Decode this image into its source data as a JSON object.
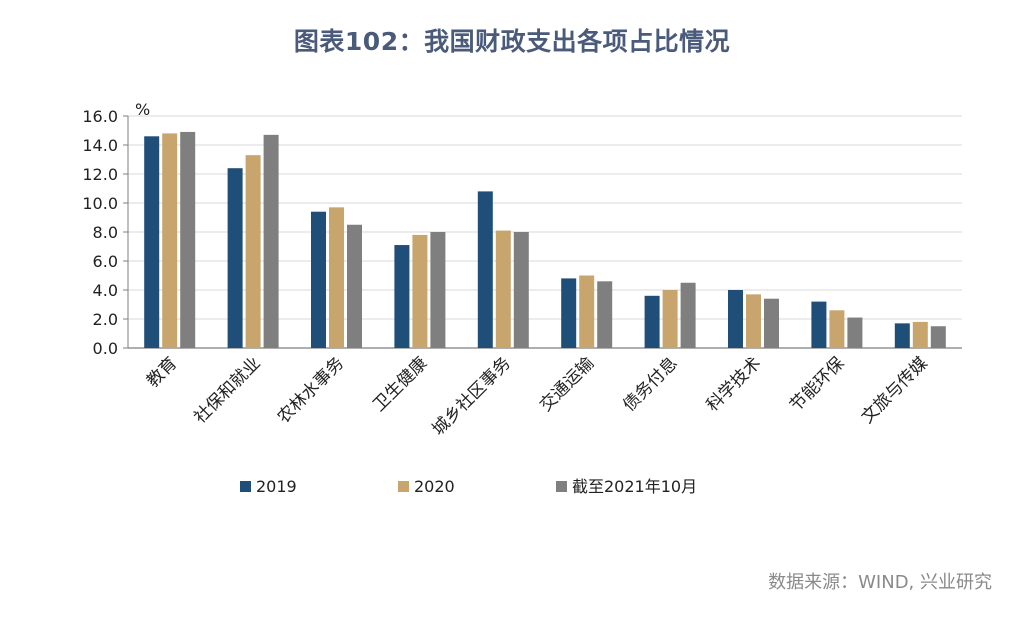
{
  "title": "图表102：我国财政支出各项占比情况",
  "source": "数据来源：WIND, 兴业研究",
  "colors": {
    "s2019": "#1f4e79",
    "s2020": "#c9a56e",
    "s2021": "#7f7f7f",
    "grid": "#d9d9d9",
    "axis": "#7f7f7f"
  },
  "chart_data": {
    "type": "bar",
    "ylabel": "%",
    "ylim": [
      0,
      16
    ],
    "yticks": [
      "0.0",
      "2.0",
      "4.0",
      "6.0",
      "8.0",
      "10.0",
      "12.0",
      "14.0",
      "16.0"
    ],
    "categories": [
      "教育",
      "社保和就业",
      "农林水事务",
      "卫生健康",
      "城乡社区事务",
      "交通运输",
      "债务付息",
      "科学技术",
      "节能环保",
      "文旅与传媒"
    ],
    "series": [
      {
        "name": "2019",
        "values": [
          14.6,
          12.4,
          9.4,
          7.1,
          10.8,
          4.8,
          3.6,
          4.0,
          3.2,
          1.7
        ]
      },
      {
        "name": "2020",
        "values": [
          14.8,
          13.3,
          9.7,
          7.8,
          8.1,
          5.0,
          4.0,
          3.7,
          2.6,
          1.8
        ]
      },
      {
        "name": "截至2021年10月",
        "values": [
          14.9,
          14.7,
          8.5,
          8.0,
          8.0,
          4.6,
          4.5,
          3.4,
          2.1,
          1.5
        ]
      }
    ],
    "grid": true,
    "legend_position": "bottom"
  }
}
